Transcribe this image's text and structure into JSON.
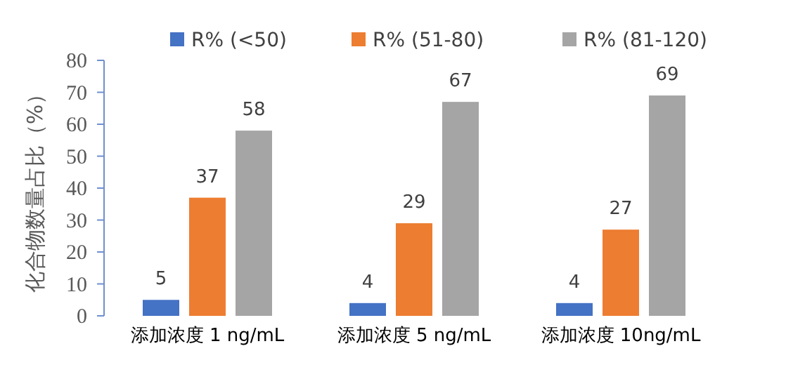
{
  "chart_data": {
    "type": "bar",
    "ylabel": "化合物数量占比（%）",
    "categories": [
      "添加浓度 1 ng/mL",
      "添加浓度 5 ng/mL",
      "添加浓度 10ng/mL"
    ],
    "series": [
      {
        "name": "R% (<50)",
        "color": "#4472c4",
        "values": [
          5,
          4,
          4
        ]
      },
      {
        "name": "R% (51-80)",
        "color": "#ed7d31",
        "values": [
          37,
          29,
          27
        ]
      },
      {
        "name": "R% (81-120)",
        "color": "#a5a5a5",
        "values": [
          58,
          67,
          69
        ]
      }
    ],
    "ylim": [
      0,
      80
    ],
    "yticks": [
      0,
      10,
      20,
      30,
      40,
      50,
      60,
      70,
      80
    ],
    "data_labels": true,
    "legend": "top"
  }
}
